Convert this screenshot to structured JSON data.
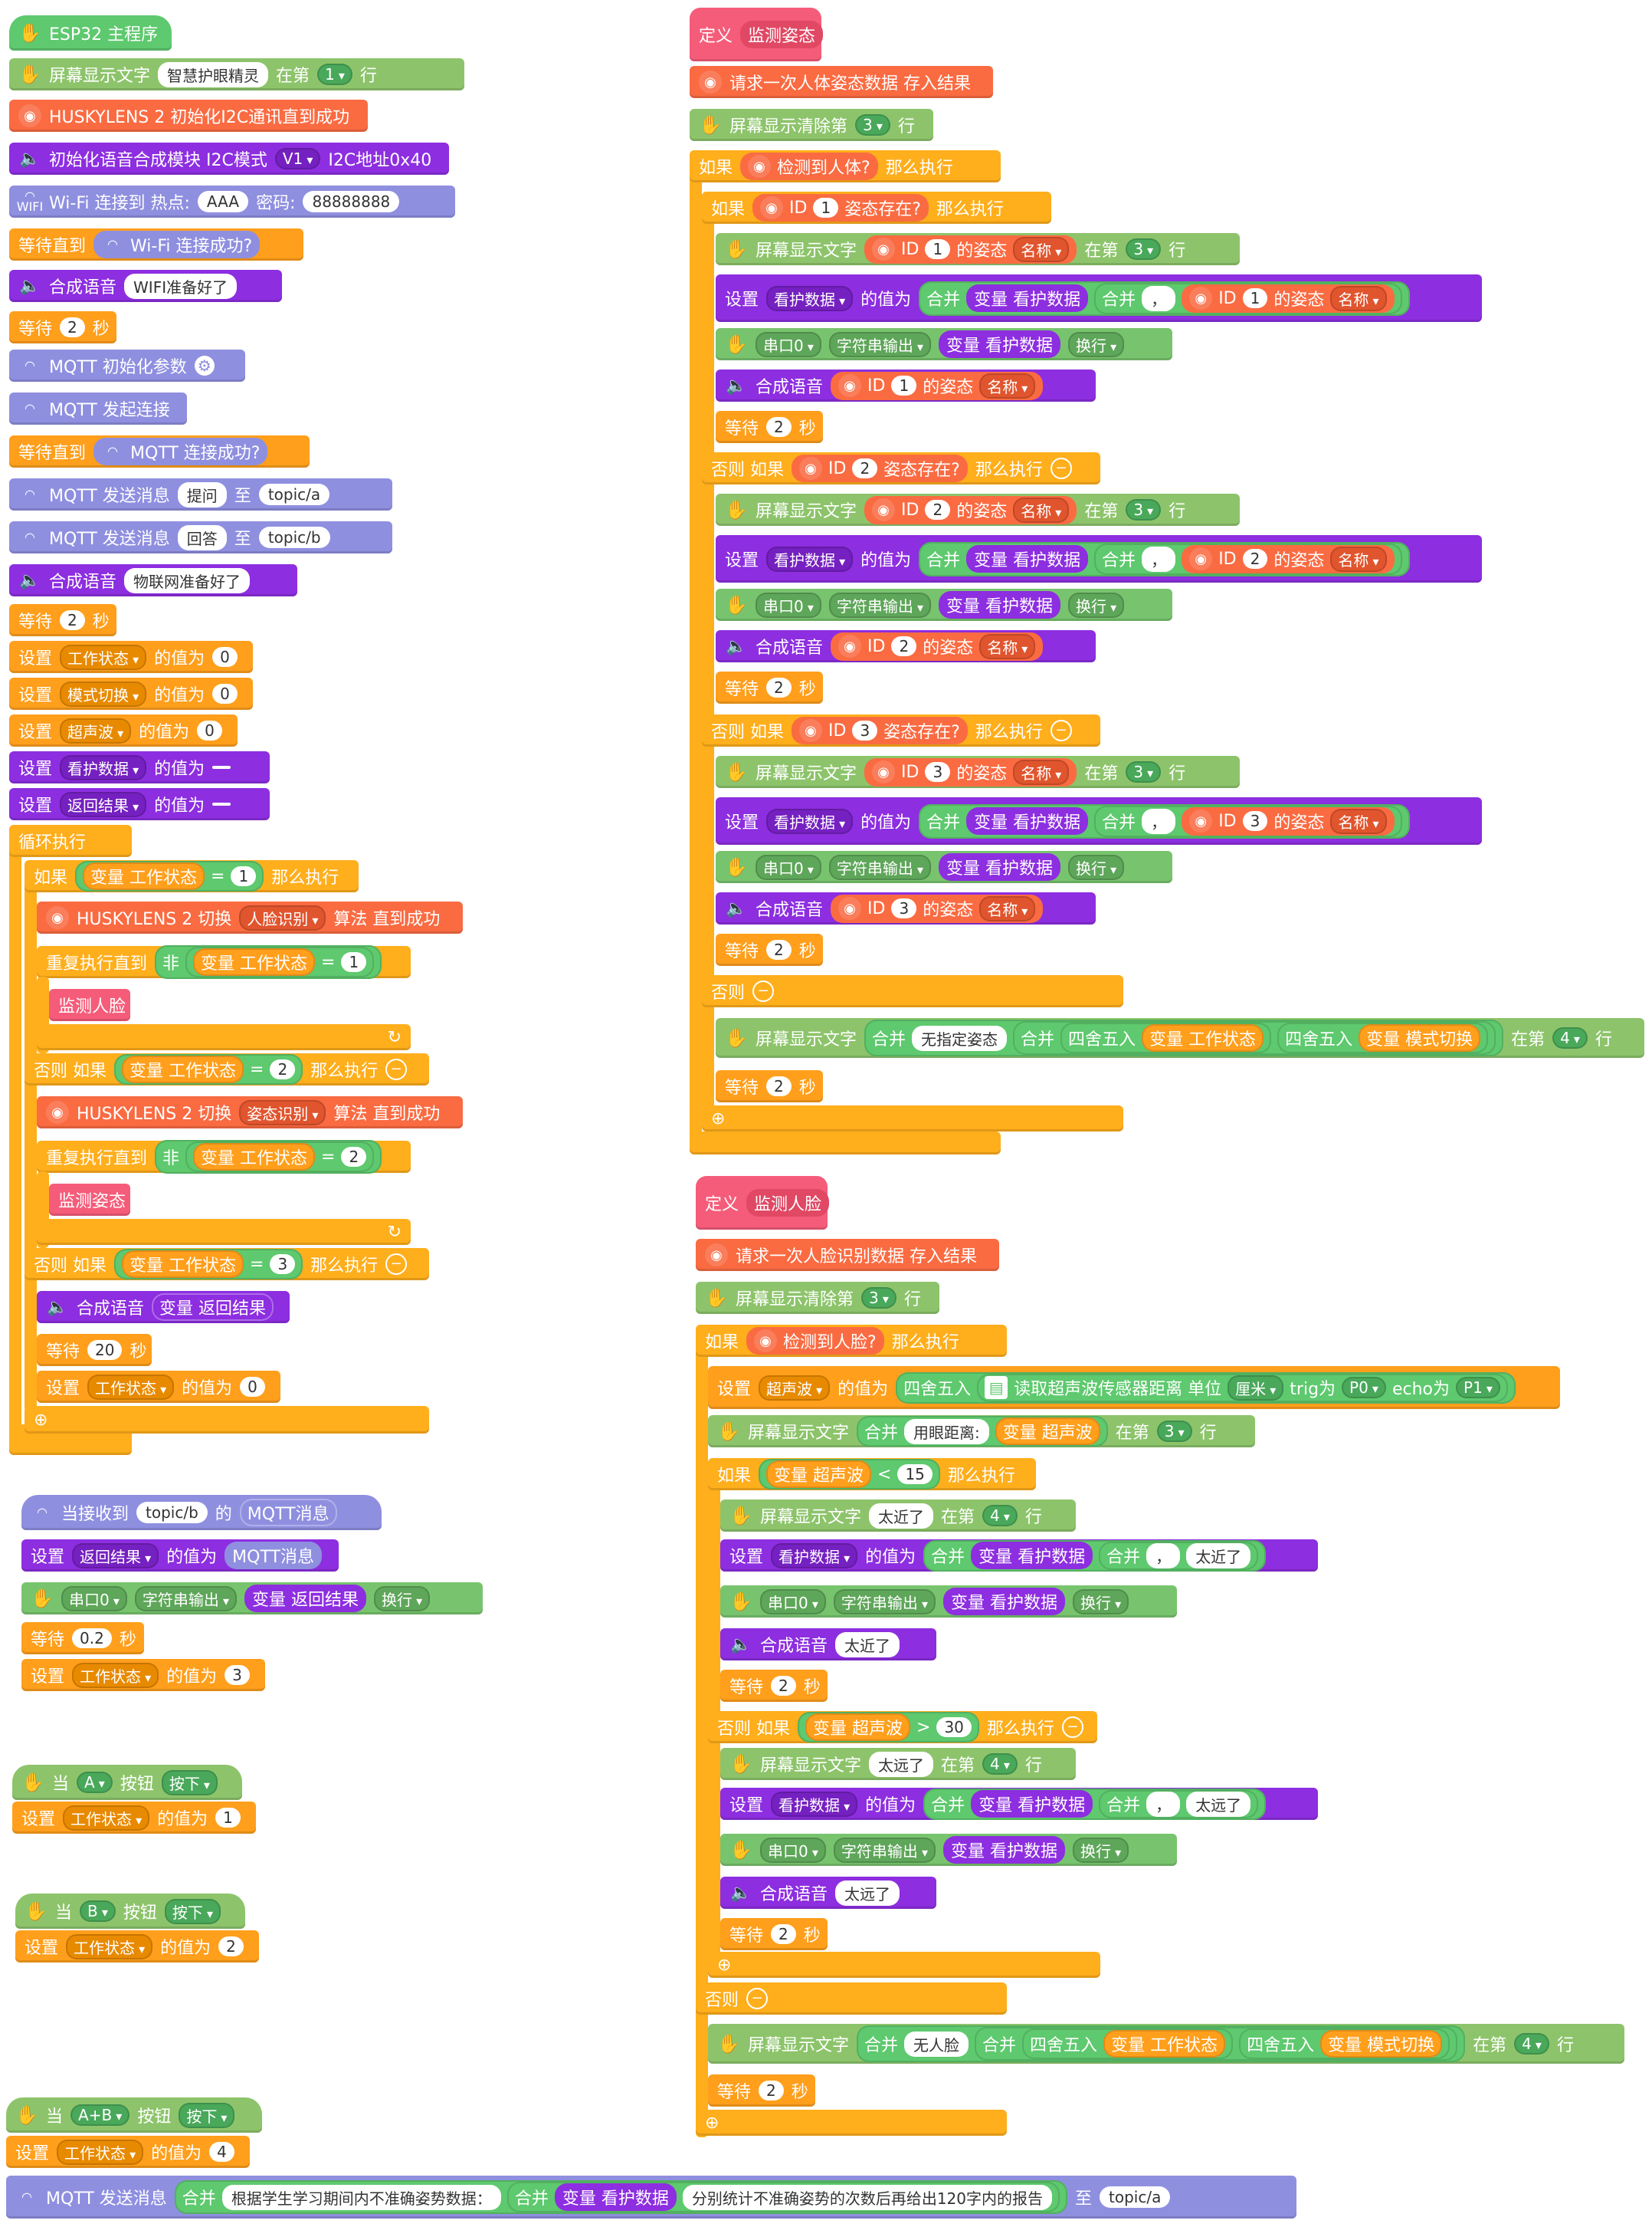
{
  "main": {
    "hat": "ESP32 主程序",
    "screen_text": {
      "label": "屏幕显示文字",
      "text": "        智慧护眼精灵 ",
      "pre": "在第",
      "row": "1",
      "post": "行"
    },
    "hl_init": "HUSKYLENS 2 初始化I2C通讯直到成功",
    "voice_init": {
      "label": "初始化语音合成模块 I2C模式",
      "ver": "V1",
      "addr": "I2C地址0x40"
    },
    "wifi": {
      "label": "Wi-Fi 连接到 热点:",
      "ssid": "AAA",
      "pwd_label": "密码:",
      "pwd": "88888888"
    },
    "wait_until_wifi": {
      "label": "等待直到",
      "cond": "Wi-Fi 连接成功?"
    },
    "say_wifi": {
      "label": "合成语音",
      "text": "WIFI准备好了"
    },
    "wait1": {
      "label": "等待",
      "n": "2",
      "unit": "秒"
    },
    "mqtt_init": "MQTT 初始化参数",
    "mqtt_connect": "MQTT 发起连接",
    "wait_until_mqtt": {
      "label": "等待直到",
      "cond": "MQTT 连接成功?"
    },
    "mqtt_send1": {
      "label": "MQTT 发送消息",
      "msg": "提问",
      "to": "至",
      "topic": "topic/a"
    },
    "mqtt_send2": {
      "label": "MQTT 发送消息",
      "msg": "回答",
      "to": "至",
      "topic": "topic/b"
    },
    "say_iot": {
      "label": "合成语音",
      "text": "物联网准备好了"
    },
    "wait2": {
      "label": "等待",
      "n": "2",
      "unit": "秒"
    },
    "set1": {
      "label": "设置",
      "var": "工作状态",
      "mid": "的值为",
      "val": "0"
    },
    "set2": {
      "label": "设置",
      "var": "模式切换",
      "mid": "的值为",
      "val": "0"
    },
    "set3": {
      "label": "设置",
      "var": "超声波",
      "mid": "的值为",
      "val": "0"
    },
    "set4": {
      "label": "设置",
      "var": "看护数据",
      "mid": "的值为",
      "val": " "
    },
    "set5": {
      "label": "设置",
      "var": "返回结果",
      "mid": "的值为",
      "val": " "
    },
    "forever": "循环执行",
    "if1": {
      "label": "如果",
      "var": "变量 工作状态",
      "op": "=",
      "val": "1",
      "then": "那么执行"
    },
    "hl_switch1": {
      "label": "HUSKYLENS 2 切换",
      "algo": "人脸识别",
      "post": "算法 直到成功"
    },
    "repeat1": {
      "label": "重复执行直到",
      "not": "非",
      "var": "变量 工作状态",
      "op": "=",
      "val": "1"
    },
    "call_face": "监测人脸",
    "elif2": {
      "label": "否则 如果",
      "var": "变量 工作状态",
      "op": "=",
      "val": "2",
      "then": "那么执行"
    },
    "hl_switch2": {
      "label": "HUSKYLENS 2 切换",
      "algo": "姿态识别",
      "post": "算法 直到成功"
    },
    "repeat2": {
      "label": "重复执行直到",
      "not": "非",
      "var": "变量 工作状态",
      "op": "=",
      "val": "2"
    },
    "call_pose": "监测姿态",
    "elif3": {
      "label": "否则 如果",
      "var": "变量 工作状态",
      "op": "=",
      "val": "3",
      "then": "那么执行"
    },
    "say_result": {
      "label": "合成语音",
      "var": "变量 返回结果"
    },
    "wait20": {
      "label": "等待",
      "n": "20",
      "unit": "秒"
    },
    "set_reset": {
      "label": "设置",
      "var": "工作状态",
      "mid": "的值为",
      "val": "0"
    }
  },
  "mqtt_recv": {
    "hat": {
      "label": "当接收到",
      "topic": "topic/b",
      "of": "的",
      "msg": "MQTT消息"
    },
    "set": {
      "label": "设置",
      "var": "返回结果",
      "mid": "的值为",
      "val": "MQTT消息"
    },
    "serial": {
      "port": "串口0",
      "mode": "字符串输出",
      "var": "变量 返回结果",
      "nl": "换行"
    },
    "wait": {
      "label": "等待",
      "n": "0.2",
      "unit": "秒"
    },
    "set2": {
      "label": "设置",
      "var": "工作状态",
      "mid": "的值为",
      "val": "3"
    }
  },
  "btnA": {
    "when": "当",
    "btn": "A",
    "key": "按钮",
    "act": "按下",
    "set": "设置",
    "var": "工作状态",
    "mid": "的值为",
    "val": "1"
  },
  "btnB": {
    "when": "当",
    "btn": "B",
    "key": "按钮",
    "act": "按下",
    "set": "设置",
    "var": "工作状态",
    "mid": "的值为",
    "val": "2"
  },
  "btnAB": {
    "when": "当",
    "btn": "A+B",
    "key": "按钮",
    "act": "按下",
    "set": "设置",
    "var": "工作状态",
    "mid": "的值为",
    "val": "4",
    "send_label": "MQTT 发送消息",
    "join": "合并",
    "text1": "根据学生学习期间内不准确姿势数据：",
    "join2": "合并",
    "var2": "变量 看护数据",
    "text2": "分别统计不准确姿势的次数后再给出120字内的报告",
    "to": "至",
    "topic": "topic/a"
  },
  "pose": {
    "def": {
      "label": "定义",
      "name": "监测姿态"
    },
    "request": "请求一次人体姿态数据 存入结果",
    "clear": {
      "label": "屏幕显示清除第",
      "row": "3",
      "post": "行"
    },
    "if_body": {
      "label": "如果",
      "cond": "检测到人体?",
      "then": "那么执行"
    },
    "ids": [
      {
        "if": "如果",
        "id": "1",
        "exists": "姿态存在?",
        "then": "那么执行"
      },
      {
        "if": "否则 如果",
        "id": "2",
        "exists": "姿态存在?",
        "then": "那么执行"
      },
      {
        "if": "否则 如果",
        "id": "3",
        "exists": "姿态存在?",
        "then": "那么执行"
      }
    ],
    "show_label": "屏幕显示文字",
    "of_pose": "的姿态",
    "name": "名称",
    "on": "在第",
    "row": "3",
    "line": "行",
    "set_label": "设置",
    "var": "看护数据",
    "mid": "的值为",
    "join": "合并",
    "var_ref": "变量 看护数据",
    "comma": "，",
    "serial": {
      "port": "串口0",
      "mode": "字符串输出",
      "nl": "换行"
    },
    "say": "合成语音",
    "wait": {
      "label": "等待",
      "n": "2",
      "unit": "秒"
    },
    "else": "否则",
    "else_show": {
      "text": "无指定姿态",
      "round": "四舍五入",
      "v1": "变量 工作状态",
      "v2": "变量 模式切换",
      "row": "4"
    }
  },
  "face": {
    "def": {
      "label": "定义",
      "name": "监测人脸"
    },
    "request": "请求一次人脸识别数据 存入结果",
    "clear": {
      "label": "屏幕显示清除第",
      "row": "3",
      "post": "行"
    },
    "if_face": {
      "label": "如果",
      "cond": "检测到人脸?",
      "then": "那么执行"
    },
    "set_us": {
      "label": "设置",
      "var": "超声波",
      "mid": "的值为",
      "round": "四舍五入",
      "read": "读取超声波传感器距离 单位",
      "unit": "厘米",
      "trig": "trig为",
      "p0": "P0",
      "echo": "echo为",
      "p1": "P1"
    },
    "show_dist": {
      "label": "屏幕显示文字",
      "join": "合并",
      "text": "用眼距离:",
      "var": "变量 超声波",
      "on": "在第",
      "row": "3",
      "line": "行"
    },
    "if_close": {
      "label": "如果",
      "var": "变量 超声波",
      "op": "<",
      "val": "15",
      "then": "那么执行"
    },
    "close_text": "太近了",
    "elif_far": {
      "label": "否则 如果",
      "var": "变量 超声波",
      "op": ">",
      "val": "30",
      "then": "那么执行"
    },
    "far_text": "太远了",
    "row4": "4",
    "else_show": {
      "text": "无人脸",
      "round": "四舍五入",
      "v1": "变量 工作状态",
      "v2": "变量 模式切换",
      "row": "4"
    }
  }
}
